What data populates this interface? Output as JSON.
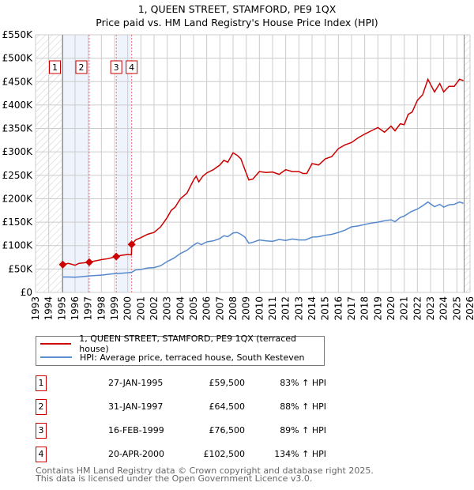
{
  "chart_data": {
    "type": "line",
    "title": "1, QUEEN STREET, STAMFORD, PE9 1QX",
    "subtitle": "Price paid vs. HM Land Registry's House Price Index (HPI)",
    "xlim": [
      1993,
      2026
    ],
    "ylim": [
      0,
      550000
    ],
    "y_ticks": [
      "£0",
      "£50K",
      "£100K",
      "£150K",
      "£200K",
      "£250K",
      "£300K",
      "£350K",
      "£400K",
      "£450K",
      "£500K",
      "£550K"
    ],
    "x_ticks": [
      "1993",
      "1994",
      "1995",
      "1996",
      "1997",
      "1998",
      "1999",
      "2000",
      "2001",
      "2002",
      "2003",
      "2004",
      "2005",
      "2006",
      "2007",
      "2008",
      "2009",
      "2010",
      "2011",
      "2012",
      "2013",
      "2014",
      "2015",
      "2016",
      "2017",
      "2018",
      "2019",
      "2020",
      "2021",
      "2022",
      "2023",
      "2024",
      "2025",
      "2026"
    ],
    "grid": true,
    "series": [
      {
        "name": "1, QUEEN STREET, STAMFORD, PE9 1QX (terraced house)",
        "color": "#cc0000",
        "x": [
          1995.07,
          1995.5,
          1996,
          1996.3,
          1997.08,
          1997.5,
          1998,
          1998.5,
          1999.13,
          1999.5,
          2000,
          2000.28,
          2000.3,
          2000.6,
          2001,
          2001.5,
          2002,
          2002.5,
          2003,
          2003.3,
          2003.6,
          2004,
          2004.5,
          2005,
          2005.2,
          2005.4,
          2005.7,
          2006,
          2006.5,
          2007,
          2007.3,
          2007.6,
          2008,
          2008.3,
          2008.6,
          2008.9,
          2009.2,
          2009.5,
          2010,
          2010.5,
          2011,
          2011.5,
          2012,
          2012.5,
          2013,
          2013.3,
          2013.6,
          2014,
          2014.5,
          2015,
          2015.5,
          2016,
          2016.5,
          2017,
          2017.5,
          2018,
          2018.5,
          2019,
          2019.5,
          2020,
          2020.3,
          2020.7,
          2021,
          2021.3,
          2021.6,
          2022,
          2022.4,
          2022.8,
          2023.3,
          2023.7,
          2024,
          2024.4,
          2024.8,
          2025.2,
          2025.5
        ],
        "y": [
          59500,
          62000,
          58000,
          62000,
          64500,
          67000,
          70000,
          72000,
          76500,
          79000,
          81000,
          80000,
          102500,
          112000,
          117000,
          124000,
          128000,
          140000,
          160000,
          175000,
          182000,
          200000,
          212000,
          240000,
          248000,
          236000,
          248000,
          255000,
          262000,
          272000,
          282000,
          278000,
          298000,
          293000,
          285000,
          262000,
          240000,
          242000,
          258000,
          256000,
          257000,
          252000,
          262000,
          258000,
          258000,
          254000,
          254000,
          275000,
          272000,
          285000,
          290000,
          307000,
          315000,
          320000,
          330000,
          338000,
          345000,
          352000,
          342000,
          355000,
          345000,
          360000,
          358000,
          380000,
          385000,
          410000,
          422000,
          455000,
          428000,
          446000,
          428000,
          440000,
          440000,
          455000,
          452000
        ]
      },
      {
        "name": "HPI: Average price, terraced house, South Kesteven",
        "color": "#5588cc",
        "x": [
          1995.07,
          1995.5,
          1996,
          1996.5,
          1997,
          1997.5,
          1998,
          1998.5,
          1999,
          1999.5,
          2000,
          2000.3,
          2000.6,
          2001,
          2001.5,
          2002,
          2002.5,
          2003,
          2003.5,
          2004,
          2004.5,
          2005,
          2005.3,
          2005.6,
          2006,
          2006.5,
          2007,
          2007.3,
          2007.6,
          2008,
          2008.3,
          2008.6,
          2008.9,
          2009.2,
          2009.5,
          2010,
          2010.5,
          2011,
          2011.5,
          2012,
          2012.5,
          2013,
          2013.5,
          2014,
          2014.5,
          2015,
          2015.5,
          2016,
          2016.5,
          2017,
          2017.5,
          2018,
          2018.5,
          2019,
          2019.5,
          2020,
          2020.3,
          2020.7,
          2021,
          2021.5,
          2022,
          2022.4,
          2022.8,
          2023.3,
          2023.7,
          2024,
          2024.4,
          2024.8,
          2025.2,
          2025.5
        ],
        "y": [
          33000,
          33000,
          32500,
          33500,
          35000,
          36000,
          37000,
          38500,
          40000,
          41000,
          42000,
          43000,
          48000,
          49000,
          52000,
          53000,
          57000,
          66000,
          73000,
          83000,
          90000,
          101000,
          106000,
          102000,
          108000,
          110000,
          115000,
          121000,
          119000,
          127000,
          128000,
          124000,
          118000,
          105000,
          107000,
          112000,
          110000,
          109000,
          113000,
          111000,
          114000,
          112000,
          112000,
          118000,
          119000,
          122000,
          124000,
          128000,
          133000,
          140000,
          142000,
          145000,
          148000,
          150000,
          153000,
          155000,
          151000,
          160000,
          163000,
          172000,
          178000,
          185000,
          193000,
          183000,
          188000,
          182000,
          187000,
          188000,
          193000,
          190000
        ]
      }
    ],
    "sales": [
      {
        "label": "1",
        "x": 1995.07,
        "y": 59500
      },
      {
        "label": "2",
        "x": 1997.08,
        "y": 64500
      },
      {
        "label": "3",
        "x": 1999.13,
        "y": 76500
      },
      {
        "label": "4",
        "x": 2000.3,
        "y": 102500
      }
    ],
    "data_end": 2025.55
  },
  "legend": {
    "property": "1, QUEEN STREET, STAMFORD, PE9 1QX (terraced house)",
    "hpi": "HPI: Average price, terraced house, South Kesteven"
  },
  "table": [
    {
      "num": "1",
      "date": "27-JAN-1995",
      "price": "£59,500",
      "hpi": "83% ↑ HPI"
    },
    {
      "num": "2",
      "date": "31-JAN-1997",
      "price": "£64,500",
      "hpi": "88% ↑ HPI"
    },
    {
      "num": "3",
      "date": "16-FEB-1999",
      "price": "£76,500",
      "hpi": "89% ↑ HPI"
    },
    {
      "num": "4",
      "date": "20-APR-2000",
      "price": "£102,500",
      "hpi": "134% ↑ HPI"
    }
  ],
  "footer": {
    "line1": "Contains HM Land Registry data © Crown copyright and database right 2025.",
    "line2": "This data is licensed under the Open Government Licence v3.0."
  }
}
